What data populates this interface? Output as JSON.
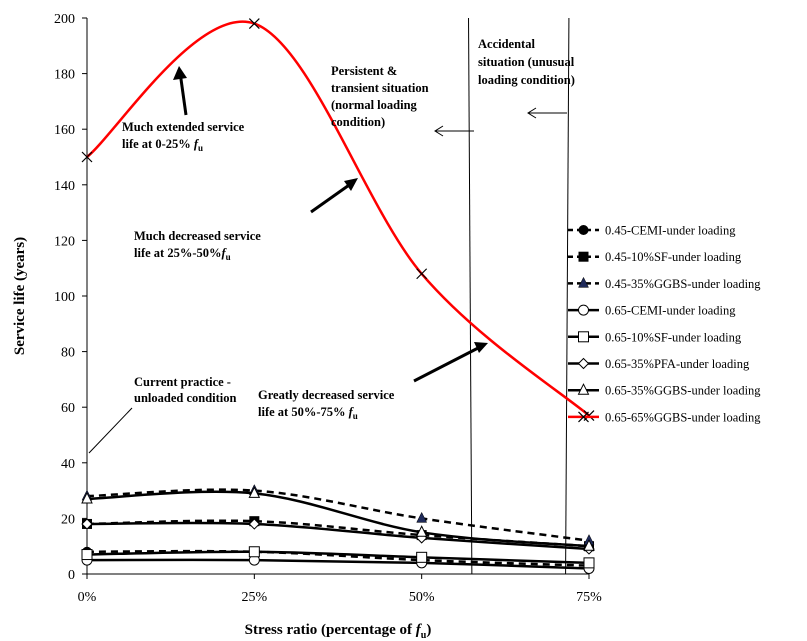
{
  "chart_data": {
    "type": "line",
    "xlabel": "Stress ratio (percentage of",
    "xlabel_var": "f",
    "xlabel_sub": "u",
    "xlabel_end": ")",
    "ylabel": "Service life (years)",
    "x": [
      0,
      25,
      50,
      75
    ],
    "x_tick_labels": [
      "0%",
      "25%",
      "50%",
      "75%"
    ],
    "xlim": [
      0,
      75
    ],
    "ylim": [
      0,
      200
    ],
    "y_ticks": [
      0,
      20,
      40,
      60,
      80,
      100,
      120,
      140,
      160,
      180,
      200
    ],
    "grid": false,
    "legend_position": "right",
    "series": [
      {
        "name": "0.45-CEMI-under loading",
        "values": [
          8,
          8,
          5,
          3
        ],
        "line": "dashed",
        "marker": "filled-circle",
        "color": "#000000"
      },
      {
        "name": "0.45-10%SF-under loading",
        "values": [
          18,
          19,
          14,
          10
        ],
        "line": "dashed",
        "marker": "filled-square",
        "color": "#000000"
      },
      {
        "name": "0.45-35%GGBS-under loading",
        "values": [
          28,
          30,
          20,
          12
        ],
        "line": "dashed",
        "marker": "filled-triangle",
        "color": "#000000"
      },
      {
        "name": "0.65-CEMI-under loading",
        "values": [
          5,
          5,
          4,
          2
        ],
        "line": "solid",
        "marker": "open-circle",
        "color": "#000000"
      },
      {
        "name": "0.65-10%SF-under loading",
        "values": [
          7,
          8,
          6,
          4
        ],
        "line": "solid",
        "marker": "open-square",
        "color": "#000000"
      },
      {
        "name": "0.65-35%PFA-under loading",
        "values": [
          18,
          18,
          13,
          9
        ],
        "line": "solid",
        "marker": "open-diamond",
        "color": "#000000"
      },
      {
        "name": "0.65-35%GGBS-under loading",
        "values": [
          27,
          29,
          15,
          10
        ],
        "line": "solid",
        "marker": "open-triangle",
        "color": "#000000"
      },
      {
        "name": "0.65-65%GGBS-under loading",
        "values": [
          150,
          198,
          108,
          57
        ],
        "line": "solid",
        "marker": "x",
        "color": "#ff0000"
      }
    ],
    "vertical_lines": [
      {
        "top_x": 57,
        "bottom_x": 57.5
      },
      {
        "top_x": 72,
        "bottom_x": 71.5
      }
    ],
    "annotations": {
      "current_practice": [
        "Current practice -",
        "unloaded condition"
      ],
      "extended": [
        "Much extended service",
        "life at 0-25%"
      ],
      "decreased": [
        "Much decreased service",
        "life at 25%-50%"
      ],
      "greatly": [
        "Greatly decreased service",
        "life at 50%-75%"
      ],
      "persistent": [
        "Persistent &",
        "transient situation",
        "(normal loading",
        "condition)"
      ],
      "accidental": [
        "Accidental",
        "situation (unusual",
        "loading condition)"
      ],
      "f_symbol": "f",
      "u_subscript": "u"
    }
  }
}
